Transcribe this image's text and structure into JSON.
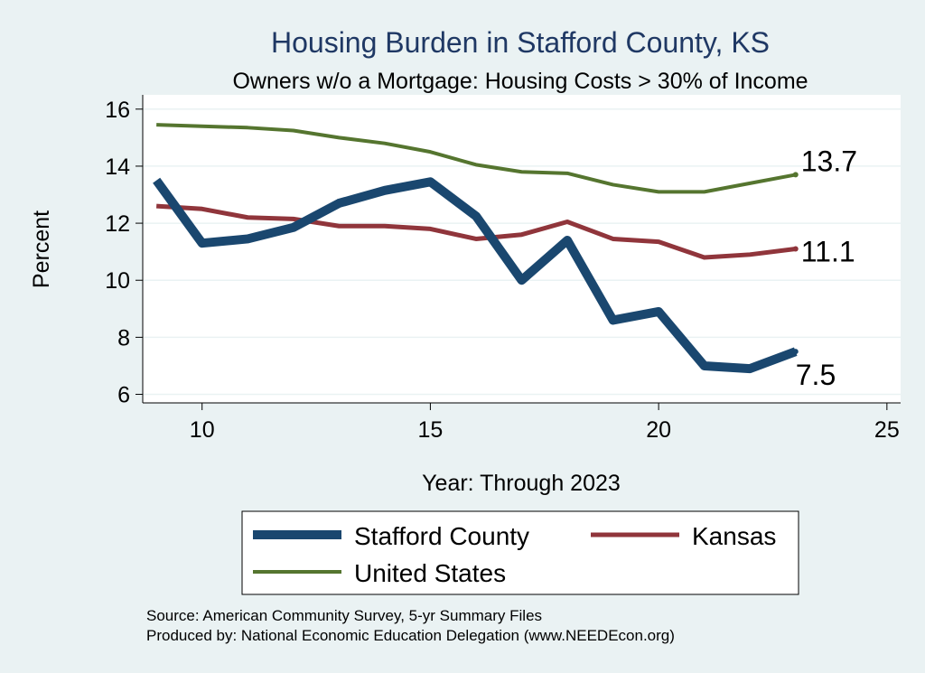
{
  "chart_data": {
    "type": "line",
    "title": "Housing Burden in Stafford County, KS",
    "subtitle": "Owners w/o a Mortgage: Housing Costs > 30% of Income",
    "xlabel": "Year: Through 2023",
    "ylabel": "Percent",
    "xlim": [
      8.7,
      25.3
    ],
    "ylim": [
      5.7,
      16.5
    ],
    "xticks": [
      10,
      15,
      20,
      25
    ],
    "yticks": [
      6,
      8,
      10,
      12,
      14,
      16
    ],
    "grid": true,
    "legend_position": "bottom",
    "x": [
      9,
      10,
      11,
      12,
      13,
      14,
      15,
      16,
      17,
      18,
      19,
      20,
      21,
      22,
      23
    ],
    "series": [
      {
        "name": "Stafford County",
        "color": "#1a476f",
        "values": [
          13.5,
          11.3,
          11.45,
          11.85,
          12.7,
          13.15,
          13.45,
          12.25,
          10.0,
          11.4,
          8.6,
          8.9,
          7.0,
          6.9,
          7.5
        ],
        "end_label": "7.5"
      },
      {
        "name": "Kansas",
        "color": "#90353b",
        "values": [
          12.6,
          12.5,
          12.2,
          12.15,
          11.9,
          11.9,
          11.8,
          11.45,
          11.6,
          12.05,
          11.45,
          11.35,
          10.8,
          10.9,
          11.1
        ],
        "end_label": "11.1"
      },
      {
        "name": "United States",
        "color": "#55752f",
        "values": [
          15.45,
          15.4,
          15.35,
          15.25,
          15.0,
          14.8,
          14.5,
          14.05,
          13.8,
          13.75,
          13.35,
          13.1,
          13.1,
          13.4,
          13.7
        ],
        "end_label": "13.7"
      }
    ]
  },
  "source_lines": [
    "Source: American Community Survey, 5-yr Summary Files",
    "Produced by: National Economic Education Delegation (www.NEEDEcon.org)"
  ]
}
